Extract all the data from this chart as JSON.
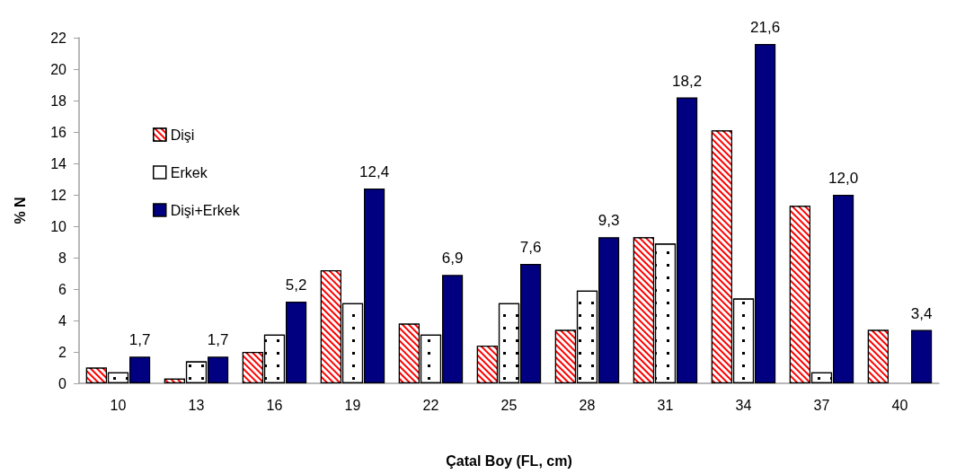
{
  "chart_data": {
    "type": "bar",
    "xlabel": "Çatal Boy (FL, cm)",
    "ylabel": "% N",
    "categories": [
      "10",
      "13",
      "16",
      "19",
      "22",
      "25",
      "28",
      "31",
      "34",
      "37",
      "40"
    ],
    "series": [
      {
        "name": "Dişi",
        "color": "#ff0000",
        "values": [
          1.0,
          0.3,
          2.0,
          7.2,
          3.8,
          2.4,
          3.4,
          9.3,
          16.1,
          11.3,
          3.4
        ]
      },
      {
        "name": "Erkek",
        "color": "#ffffff",
        "values": [
          0.7,
          1.4,
          3.1,
          5.1,
          3.1,
          5.1,
          5.9,
          8.9,
          5.4,
          0.7,
          null
        ]
      },
      {
        "name": "Dişi+Erkek",
        "color": "#000080",
        "values": [
          1.7,
          1.7,
          5.2,
          12.4,
          6.9,
          7.6,
          9.3,
          18.2,
          21.6,
          12.0,
          3.4
        ],
        "value_labels": [
          "1,7",
          "1,7",
          "5,2",
          "12,4",
          "6,9",
          "7,6",
          "9,3",
          "18,2",
          "21,6",
          "12,0",
          "3,4"
        ]
      }
    ],
    "ylim": [
      0,
      22
    ],
    "yticks": [
      0,
      2,
      4,
      6,
      8,
      10,
      12,
      14,
      16,
      18,
      20,
      22
    ],
    "legend": "left"
  }
}
